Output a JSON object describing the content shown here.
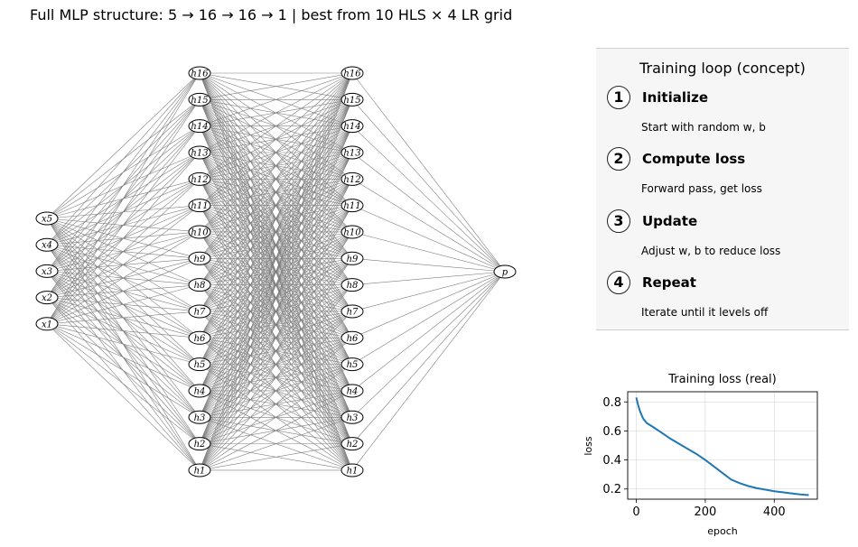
{
  "main_title": "Full MLP structure: 5 → 16 → 16 → 1 | best from 10 HLS × 4 LR grid",
  "network": {
    "input_nodes": [
      "x5",
      "x4",
      "x3",
      "x2",
      "x1"
    ],
    "hidden1_nodes": [
      "h16",
      "h15",
      "h14",
      "h13",
      "h12",
      "h11",
      "h10",
      "h9",
      "h8",
      "h7",
      "h6",
      "h5",
      "h4",
      "h3",
      "h2",
      "h1"
    ],
    "hidden2_nodes": [
      "h16",
      "h15",
      "h14",
      "h13",
      "h12",
      "h11",
      "h10",
      "h9",
      "h8",
      "h7",
      "h6",
      "h5",
      "h4",
      "h3",
      "h2",
      "h1"
    ],
    "output_nodes": [
      "p"
    ],
    "edge_color": "#7f7f7f"
  },
  "training_loop": {
    "title": "Training loop (concept)",
    "steps": [
      {
        "number": "1",
        "title": "Initialize",
        "desc": "Start with random w, b"
      },
      {
        "number": "2",
        "title": "Compute loss",
        "desc": "Forward pass, get loss"
      },
      {
        "number": "3",
        "title": "Update",
        "desc": "Adjust w, b to reduce loss"
      },
      {
        "number": "4",
        "title": "Repeat",
        "desc": "Iterate until it levels off"
      }
    ]
  },
  "chart_data": {
    "type": "line",
    "title": "Training loss (real)",
    "xlabel": "epoch",
    "ylabel": "loss",
    "xlim": [
      -25,
      525
    ],
    "ylim": [
      0.13,
      0.87
    ],
    "xticks": [
      0,
      200,
      400
    ],
    "yticks": [
      0.2,
      0.4,
      0.6,
      0.8
    ],
    "grid": true,
    "line_color": "#1f77b4",
    "series": [
      {
        "x": [
          0,
          5,
          10,
          15,
          20,
          25,
          30,
          40,
          50,
          75,
          100,
          125,
          150,
          175,
          200,
          225,
          250,
          275,
          300,
          325,
          350,
          375,
          400,
          425,
          450,
          475,
          500
        ],
        "y": [
          0.83,
          0.78,
          0.74,
          0.71,
          0.685,
          0.67,
          0.655,
          0.64,
          0.625,
          0.585,
          0.545,
          0.51,
          0.475,
          0.44,
          0.4,
          0.355,
          0.31,
          0.265,
          0.24,
          0.22,
          0.205,
          0.195,
          0.185,
          0.177,
          0.17,
          0.163,
          0.158
        ]
      }
    ]
  }
}
